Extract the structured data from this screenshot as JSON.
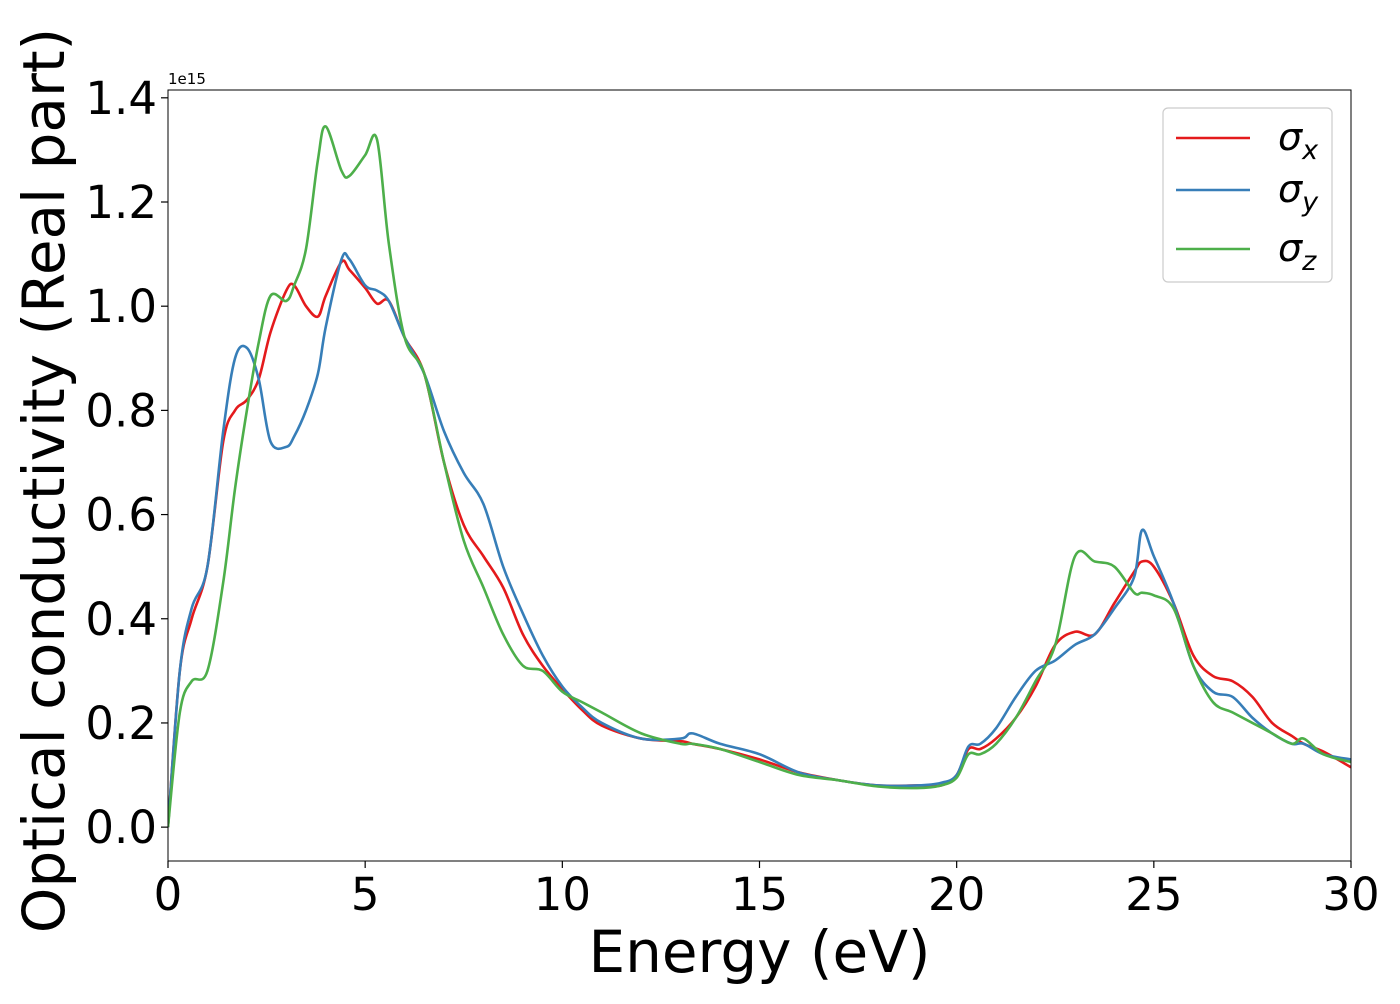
{
  "chart_data": {
    "type": "line",
    "title": "",
    "xlabel": "Energy (eV)",
    "ylabel": "Optical conductivity (Real part)",
    "y_offset_label": "1e15",
    "xlim": [
      0,
      30
    ],
    "ylim": [
      -0.065,
      1.415
    ],
    "x_ticks": [
      0,
      5,
      10,
      15,
      20,
      25,
      30
    ],
    "x_tick_labels": [
      "0",
      "5",
      "10",
      "15",
      "20",
      "25",
      "30"
    ],
    "y_ticks": [
      0.0,
      0.2,
      0.4,
      0.6,
      0.8,
      1.0,
      1.2,
      1.4
    ],
    "y_tick_labels": [
      "0.0",
      "0.2",
      "0.4",
      "0.6",
      "0.8",
      "1.0",
      "1.2",
      "1.4"
    ],
    "grid": false,
    "legend_position": "top-right",
    "x": [
      0,
      0.3,
      0.6,
      1.0,
      1.4,
      1.7,
      2.0,
      2.3,
      2.6,
      3.0,
      3.2,
      3.5,
      3.8,
      4.0,
      4.4,
      4.6,
      5.0,
      5.3,
      5.6,
      6.0,
      6.5,
      7.0,
      7.5,
      8.0,
      8.5,
      9.0,
      9.5,
      10.0,
      10.5,
      11.0,
      12.0,
      13.0,
      13.3,
      14.0,
      15.0,
      16.0,
      17.0,
      18.0,
      19.0,
      19.6,
      20.0,
      20.3,
      20.6,
      21.0,
      21.5,
      22.0,
      22.5,
      23.0,
      23.5,
      24.0,
      24.5,
      24.7,
      25.0,
      25.5,
      26.0,
      26.5,
      27.0,
      27.5,
      28.0,
      28.5,
      28.8,
      29.3,
      30.0
    ],
    "series": [
      {
        "name": "σx",
        "name_base": "σ",
        "name_sub": "x",
        "color": "#e41a1c",
        "values": [
          0.0,
          0.3,
          0.4,
          0.5,
          0.74,
          0.8,
          0.82,
          0.86,
          0.95,
          1.03,
          1.04,
          1.0,
          0.98,
          1.02,
          1.085,
          1.07,
          1.035,
          1.005,
          1.01,
          0.94,
          0.87,
          0.7,
          0.58,
          0.52,
          0.46,
          0.37,
          0.31,
          0.265,
          0.225,
          0.195,
          0.17,
          0.165,
          0.16,
          0.15,
          0.13,
          0.105,
          0.09,
          0.08,
          0.08,
          0.08,
          0.1,
          0.15,
          0.15,
          0.17,
          0.21,
          0.27,
          0.35,
          0.375,
          0.37,
          0.43,
          0.49,
          0.51,
          0.5,
          0.43,
          0.33,
          0.29,
          0.28,
          0.25,
          0.2,
          0.175,
          0.16,
          0.145,
          0.115
        ]
      },
      {
        "name": "σy",
        "name_base": "σ",
        "name_sub": "y",
        "color": "#377eb8",
        "values": [
          0.0,
          0.3,
          0.42,
          0.5,
          0.76,
          0.9,
          0.92,
          0.86,
          0.74,
          0.73,
          0.75,
          0.8,
          0.87,
          0.96,
          1.09,
          1.09,
          1.04,
          1.03,
          1.01,
          0.94,
          0.87,
          0.76,
          0.68,
          0.62,
          0.5,
          0.41,
          0.33,
          0.27,
          0.23,
          0.2,
          0.17,
          0.17,
          0.18,
          0.16,
          0.14,
          0.105,
          0.09,
          0.08,
          0.08,
          0.085,
          0.1,
          0.155,
          0.16,
          0.19,
          0.25,
          0.3,
          0.32,
          0.35,
          0.37,
          0.42,
          0.48,
          0.57,
          0.52,
          0.43,
          0.31,
          0.26,
          0.25,
          0.21,
          0.18,
          0.16,
          0.16,
          0.14,
          0.13
        ]
      },
      {
        "name": "σz",
        "name_base": "σ",
        "name_sub": "z",
        "color": "#4daf4a",
        "values": [
          0.0,
          0.22,
          0.28,
          0.3,
          0.47,
          0.65,
          0.8,
          0.93,
          1.02,
          1.01,
          1.04,
          1.11,
          1.28,
          1.345,
          1.26,
          1.25,
          1.29,
          1.32,
          1.12,
          0.94,
          0.87,
          0.7,
          0.55,
          0.46,
          0.37,
          0.31,
          0.3,
          0.26,
          0.24,
          0.22,
          0.18,
          0.16,
          0.16,
          0.15,
          0.125,
          0.1,
          0.09,
          0.078,
          0.075,
          0.08,
          0.095,
          0.14,
          0.14,
          0.16,
          0.21,
          0.28,
          0.35,
          0.52,
          0.51,
          0.5,
          0.45,
          0.45,
          0.445,
          0.42,
          0.31,
          0.24,
          0.22,
          0.2,
          0.18,
          0.16,
          0.17,
          0.14,
          0.125
        ]
      }
    ]
  }
}
